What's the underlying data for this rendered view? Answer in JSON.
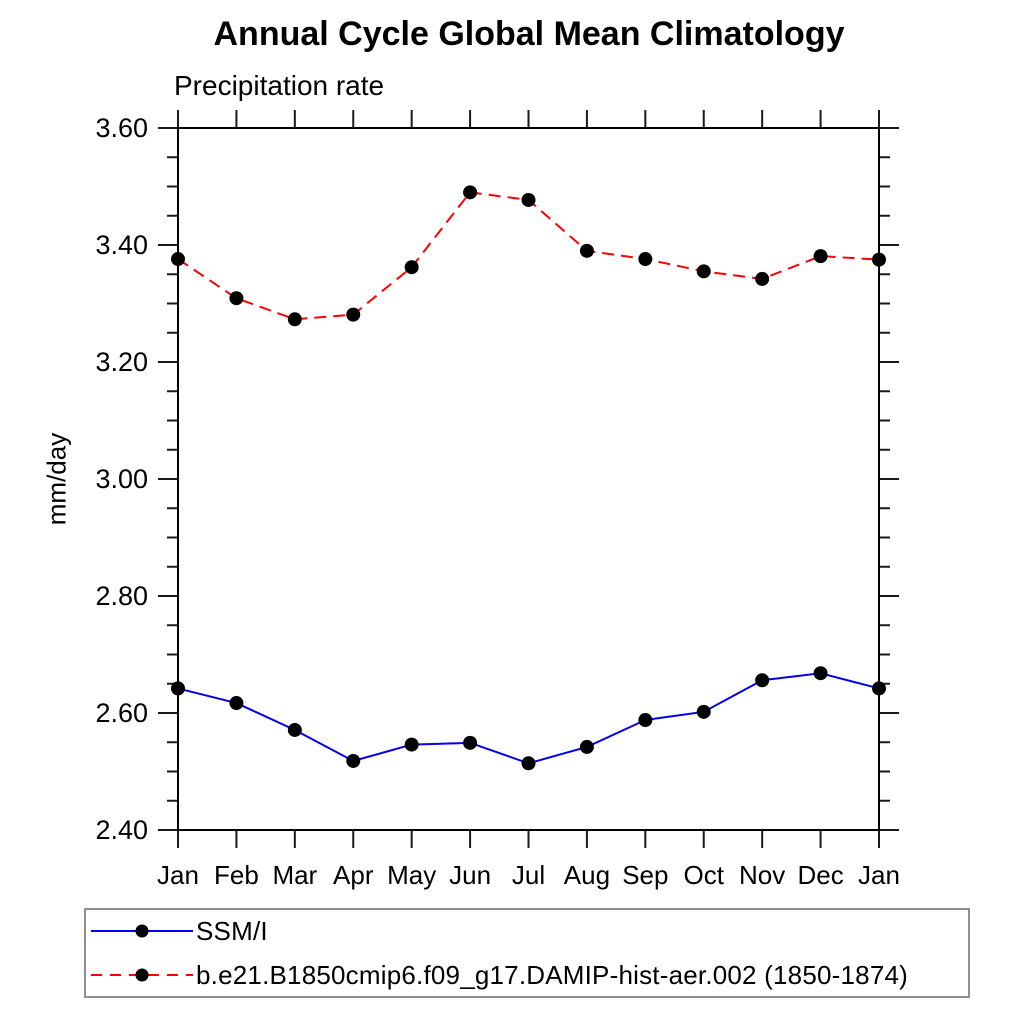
{
  "chart_data": {
    "type": "line",
    "title": "Annual Cycle Global Mean Climatology",
    "subtitle": "Precipitation rate",
    "ylabel": "mm/day",
    "xlabel": "",
    "categories": [
      "Jan",
      "Feb",
      "Mar",
      "Apr",
      "May",
      "Jun",
      "Jul",
      "Aug",
      "Sep",
      "Oct",
      "Nov",
      "Dec",
      "Jan"
    ],
    "ylim": [
      2.4,
      3.6
    ],
    "ytick_major": 0.2,
    "ytick_minor": 0.05,
    "grid": false,
    "legend_position": "bottom",
    "marker": "filled-circle",
    "marker_color": "#000000",
    "axis_color": "#000000",
    "tick_color": "#1a1a1a",
    "series": [
      {
        "name": "SSM/I",
        "color": "#0000ee",
        "line_style": "solid",
        "values": [
          2.642,
          2.617,
          2.571,
          2.518,
          2.546,
          2.549,
          2.514,
          2.542,
          2.588,
          2.602,
          2.656,
          2.668,
          2.642
        ]
      },
      {
        "name": "b.e21.B1850cmip6.f09_g17.DAMIP-hist-aer.002 (1850-1874)",
        "color": "#ff0000",
        "line_style": "dashed",
        "values": [
          3.376,
          3.309,
          3.273,
          3.281,
          3.362,
          3.49,
          3.477,
          3.39,
          3.376,
          3.355,
          3.342,
          3.381,
          3.375
        ]
      }
    ]
  }
}
